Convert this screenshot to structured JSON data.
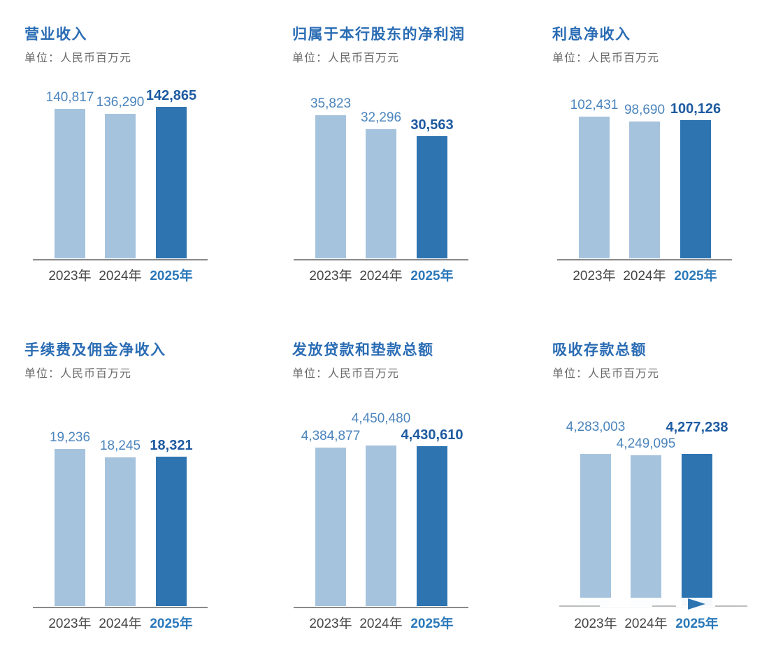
{
  "page": {
    "background": "#ffffff",
    "description": "Bank annual/interim report key financial indicators: six bar charts"
  },
  "colors": {
    "title_blue": "#2a6cb4",
    "unit_gray": "#696969",
    "bar_light": "#a6c3de",
    "bar_dark": "#2e74b1",
    "value_label_blue": "#4b84bc",
    "value_label_bold_blue": "#1e5ba1",
    "year_label_gray": "#454545",
    "year_label_blue": "#2b79ba",
    "axis_gray": "#8a8a8a"
  },
  "watermark": {
    "position": "bottom-right",
    "style": "semi-transparent white logo plate with play-triangle cutout over the 2025 bar"
  },
  "chart_data": [
    {
      "type": "bar",
      "title": "营业收入",
      "unit": "单位：人民币百万元",
      "categories": [
        "2023年",
        "2024年",
        "2025年"
      ],
      "values": [
        140817,
        136290,
        142865
      ],
      "value_labels": [
        "140,817",
        "136,290",
        "142,865"
      ],
      "highlight_index": 2,
      "ylim": [
        0,
        142865
      ],
      "grid": false,
      "legend": "none",
      "label_raised": [
        false,
        false,
        false
      ]
    },
    {
      "type": "bar",
      "title": "归属于本行股东的净利润",
      "unit": "单位：人民币百万元",
      "categories": [
        "2023年",
        "2024年",
        "2025年"
      ],
      "values": [
        35823,
        32296,
        30563
      ],
      "value_labels": [
        "35,823",
        "32,296",
        "30,563"
      ],
      "highlight_index": 2,
      "ylim": [
        0,
        35823
      ],
      "grid": false,
      "legend": "none",
      "label_raised": [
        false,
        false,
        false
      ]
    },
    {
      "type": "bar",
      "title": "利息净收入",
      "unit": "单位：人民币百万元",
      "categories": [
        "2023年",
        "2024年",
        "2025年"
      ],
      "values": [
        102431,
        98690,
        100126
      ],
      "value_labels": [
        "102,431",
        "98,690",
        "100,126"
      ],
      "highlight_index": 2,
      "ylim": [
        0,
        102431
      ],
      "grid": false,
      "legend": "none",
      "label_raised": [
        false,
        false,
        false
      ]
    },
    {
      "type": "bar",
      "title": "手续费及佣金净收入",
      "unit": "单位：人民币百万元",
      "categories": [
        "2023年",
        "2024年",
        "2025年"
      ],
      "values": [
        19236,
        18245,
        18321
      ],
      "value_labels": [
        "19,236",
        "18,245",
        "18,321"
      ],
      "highlight_index": 2,
      "ylim": [
        0,
        19236
      ],
      "grid": false,
      "legend": "none",
      "label_raised": [
        false,
        false,
        false
      ]
    },
    {
      "type": "bar",
      "title": "发放贷款和垫款总额",
      "unit": "单位：人民币百万元",
      "categories": [
        "2023年",
        "2024年",
        "2025年"
      ],
      "values": [
        4384877,
        4450480,
        4430610
      ],
      "value_labels": [
        "4,384,877",
        "4,450,480",
        "4,430,610"
      ],
      "highlight_index": 2,
      "ylim": [
        0,
        4450480
      ],
      "grid": false,
      "legend": "none",
      "label_raised": [
        false,
        true,
        false
      ]
    },
    {
      "type": "bar",
      "title": "吸收存款总额",
      "unit": "单位：人民币百万元",
      "categories": [
        "2023年",
        "2024年",
        "2025年"
      ],
      "values": [
        4283003,
        4249095,
        4277238
      ],
      "value_labels": [
        "4,283,003",
        "4,249,095",
        "4,277,238"
      ],
      "highlight_index": 2,
      "ylim": [
        0,
        4283003
      ],
      "grid": false,
      "legend": "none",
      "label_raised": [
        true,
        false,
        true
      ]
    }
  ]
}
